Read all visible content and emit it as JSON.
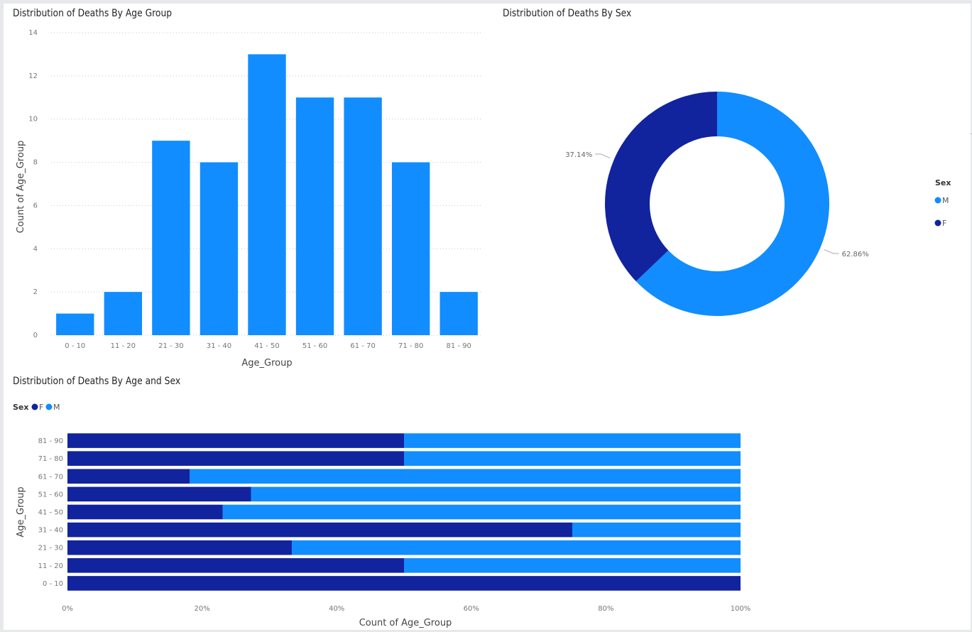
{
  "colors": {
    "M": "#118dff",
    "F": "#12239e",
    "grid": "#c8c8c8",
    "tick": "#777777",
    "axis_title": "#444444"
  },
  "chart_data": [
    {
      "type": "bar",
      "title": "Distribution of Deaths By Age Group",
      "xlabel": "Age_Group",
      "ylabel": "Count of Age_Group",
      "categories": [
        "0 - 10",
        "11 - 20",
        "21 - 30",
        "31 - 40",
        "41 - 50",
        "51 - 60",
        "61 - 70",
        "71 - 80",
        "81 - 90"
      ],
      "values": [
        1,
        2,
        9,
        8,
        13,
        11,
        11,
        8,
        2
      ],
      "yticks": [
        "0",
        "2",
        "4",
        "6",
        "8",
        "10",
        "12",
        "14"
      ],
      "ylim": [
        0,
        14
      ],
      "grid": true
    },
    {
      "type": "pie",
      "title": "Distribution of Deaths By Sex",
      "legend_title": "Sex",
      "legend_position": "right",
      "slices": [
        {
          "name": "M",
          "value": 62.86,
          "label": "62.86%"
        },
        {
          "name": "F",
          "value": 37.14,
          "label": "37.14%"
        }
      ]
    },
    {
      "type": "bar",
      "orientation": "horizontal",
      "stacked": "percent",
      "title": "Distribution of Deaths By Age and Sex",
      "legend_title": "Sex",
      "legend_position": "top-left",
      "xlabel": "Count of Age_Group",
      "ylabel": "Age_Group",
      "categories": [
        "81 - 90",
        "71 - 80",
        "61 - 70",
        "51 - 60",
        "41 - 50",
        "31 - 40",
        "21 - 30",
        "11 - 20",
        "0 - 10"
      ],
      "series": [
        {
          "name": "F",
          "values": [
            50,
            50,
            18.18,
            27.27,
            23.08,
            75,
            33.33,
            50,
            100
          ]
        },
        {
          "name": "M",
          "values": [
            50,
            50,
            81.82,
            72.73,
            76.92,
            25,
            66.67,
            50,
            0
          ]
        }
      ],
      "xticks": [
        "0%",
        "20%",
        "40%",
        "60%",
        "80%",
        "100%"
      ],
      "xlim": [
        0,
        100
      ]
    }
  ]
}
